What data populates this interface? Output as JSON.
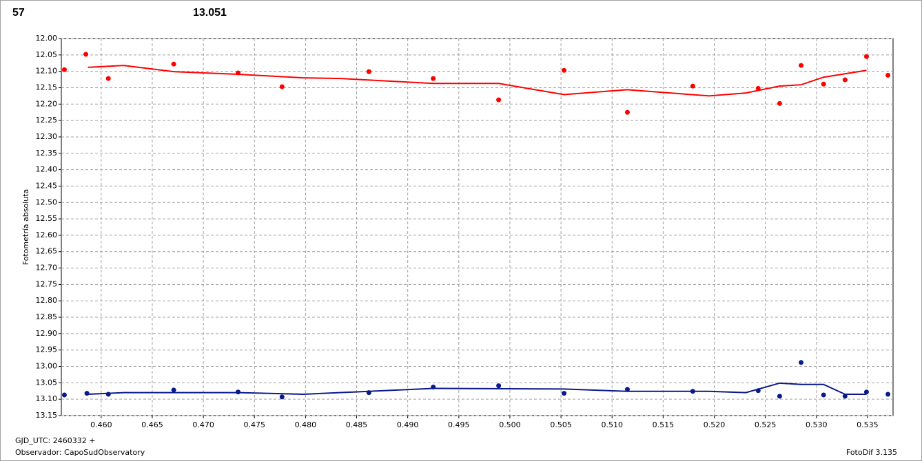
{
  "chart_data": {
    "type": "scatter",
    "header_labels": [
      {
        "text": "57",
        "color": "#ff0000"
      },
      {
        "text": "13.051",
        "color": "#0a1a8a"
      }
    ],
    "ylabel": "Fotometría absoluta",
    "footer": {
      "gjd": "GJD_UTC: 2460332 +",
      "observer": "Observador: CapoSudObservatory",
      "version": "FotoDif 3.135"
    },
    "xlim": [
      0.4561,
      0.5375
    ],
    "ylim": [
      13.15,
      12.0
    ],
    "grid": true,
    "xticks": [
      {
        "value": 0.46,
        "label": "0.460"
      },
      {
        "value": 0.465,
        "label": "0.465"
      },
      {
        "value": 0.47,
        "label": "0.470"
      },
      {
        "value": 0.475,
        "label": "0.475"
      },
      {
        "value": 0.48,
        "label": "0.480"
      },
      {
        "value": 0.485,
        "label": "0.485"
      },
      {
        "value": 0.49,
        "label": "0.490"
      },
      {
        "value": 0.495,
        "label": "0.495"
      },
      {
        "value": 0.5,
        "label": "0.500"
      },
      {
        "value": 0.505,
        "label": "0.505"
      },
      {
        "value": 0.51,
        "label": "0.510"
      },
      {
        "value": 0.515,
        "label": "0.515"
      },
      {
        "value": 0.52,
        "label": "0.520"
      },
      {
        "value": 0.525,
        "label": "0.525"
      },
      {
        "value": 0.53,
        "label": "0.530"
      },
      {
        "value": 0.535,
        "label": "0.535"
      }
    ],
    "yticks": [
      {
        "value": 12.0,
        "label": "12.00"
      },
      {
        "value": 12.05,
        "label": "12.05"
      },
      {
        "value": 12.1,
        "label": "12.10"
      },
      {
        "value": 12.15,
        "label": "12.15"
      },
      {
        "value": 12.2,
        "label": "12.20"
      },
      {
        "value": 12.25,
        "label": "12.25"
      },
      {
        "value": 12.3,
        "label": "12.30"
      },
      {
        "value": 12.35,
        "label": "12.35"
      },
      {
        "value": 12.4,
        "label": "12.40"
      },
      {
        "value": 12.45,
        "label": "12.45"
      },
      {
        "value": 12.5,
        "label": "12.50"
      },
      {
        "value": 12.55,
        "label": "12.55"
      },
      {
        "value": 12.6,
        "label": "12.60"
      },
      {
        "value": 12.65,
        "label": "12.65"
      },
      {
        "value": 12.7,
        "label": "12.70"
      },
      {
        "value": 12.75,
        "label": "12.75"
      },
      {
        "value": 12.8,
        "label": "12.80"
      },
      {
        "value": 12.85,
        "label": "12.85"
      },
      {
        "value": 12.9,
        "label": "12.90"
      },
      {
        "value": 12.95,
        "label": "12.95"
      },
      {
        "value": 13.0,
        "label": "13.00"
      },
      {
        "value": 13.05,
        "label": "13.05"
      },
      {
        "value": 13.1,
        "label": "13.10"
      },
      {
        "value": 13.15,
        "label": "13.15"
      }
    ],
    "series": [
      {
        "mode": "markers",
        "color": "#ff0000",
        "x": [
          0.4564,
          0.4585,
          0.4607,
          0.4671,
          0.4734,
          0.4777,
          0.4862,
          0.4925,
          0.4989,
          0.5053,
          0.5115,
          0.5179,
          0.5243,
          0.5264,
          0.5285,
          0.5307,
          0.5328,
          0.5349,
          0.537
        ],
        "values": [
          12.095,
          12.048,
          12.122,
          12.078,
          12.105,
          12.147,
          12.101,
          12.122,
          12.187,
          12.097,
          12.225,
          12.145,
          12.152,
          12.198,
          12.082,
          12.139,
          12.126,
          12.055,
          12.112
        ]
      },
      {
        "mode": "line",
        "color": "#ff0000",
        "x": [
          0.4587,
          0.4622,
          0.4671,
          0.4734,
          0.4798,
          0.4835,
          0.4925,
          0.4989,
          0.5053,
          0.5115,
          0.5195,
          0.5231,
          0.5264,
          0.5285,
          0.5307,
          0.5349
        ],
        "values": [
          12.088,
          12.082,
          12.101,
          12.109,
          12.12,
          12.122,
          12.137,
          12.137,
          12.171,
          12.156,
          12.175,
          12.166,
          12.145,
          12.141,
          12.118,
          12.097
        ]
      },
      {
        "mode": "markers",
        "color": "#0a1a8a",
        "x": [
          0.4564,
          0.4586,
          0.4607,
          0.4671,
          0.4734,
          0.4777,
          0.4862,
          0.4925,
          0.4989,
          0.5053,
          0.5115,
          0.5179,
          0.5243,
          0.5264,
          0.5285,
          0.5307,
          0.5328,
          0.5349,
          0.537
        ],
        "values": [
          13.087,
          13.082,
          13.085,
          13.072,
          13.078,
          13.093,
          13.08,
          13.063,
          13.059,
          13.082,
          13.07,
          13.076,
          13.074,
          13.091,
          12.988,
          13.087,
          13.091,
          13.078,
          13.085
        ]
      },
      {
        "mode": "line",
        "color": "#0a1a8a",
        "x": [
          0.4587,
          0.4622,
          0.4734,
          0.4798,
          0.4862,
          0.4925,
          0.5053,
          0.5115,
          0.5195,
          0.5231,
          0.5264,
          0.5285,
          0.5307,
          0.5328,
          0.5349
        ],
        "values": [
          13.085,
          13.08,
          13.08,
          13.085,
          13.076,
          13.067,
          13.069,
          13.076,
          13.076,
          13.08,
          13.051,
          13.055,
          13.055,
          13.085,
          13.085
        ]
      }
    ]
  }
}
